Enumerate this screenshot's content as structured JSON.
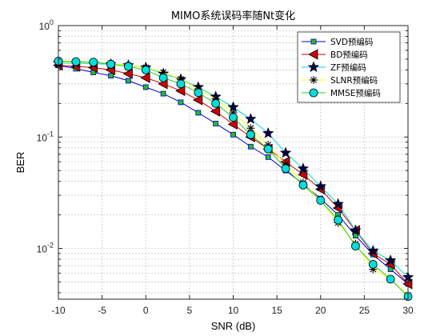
{
  "chart_data": {
    "type": "line",
    "title": "MIMO系统误码率随Nt变化",
    "xlabel": "SNR (dB)",
    "ylabel": "BER",
    "xlim": [
      -10,
      30
    ],
    "ylim": [
      0.0035,
      1
    ],
    "yscale": "log",
    "grid": true,
    "legend_position": "top-right",
    "x_ticks": [
      -10,
      -5,
      0,
      5,
      10,
      15,
      20,
      25,
      30
    ],
    "y_ticks": [
      {
        "value": 0.01,
        "base": "10",
        "exp": "-2"
      },
      {
        "value": 0.1,
        "base": "10",
        "exp": "-1"
      },
      {
        "value": 1,
        "base": "10",
        "exp": "0"
      }
    ],
    "x": [
      -10,
      -8,
      -6,
      -4,
      -2,
      0,
      2,
      4,
      6,
      8,
      10,
      12,
      14,
      16,
      18,
      20,
      22,
      24,
      26,
      28,
      30
    ],
    "series": [
      {
        "name": "SVD预编码",
        "color": "#0000cc",
        "marker": "square",
        "marker_fill": "#22bb22",
        "values": [
          0.44,
          0.41,
          0.38,
          0.355,
          0.32,
          0.28,
          0.245,
          0.205,
          0.165,
          0.132,
          0.105,
          0.082,
          0.066,
          0.05,
          0.038,
          0.028,
          0.02,
          0.013,
          0.0088,
          0.0065,
          0.0048
        ]
      },
      {
        "name": "BD预编码",
        "color": "#cc0000",
        "marker": "triangle-left",
        "marker_fill": "#cc0000",
        "values": [
          0.44,
          0.43,
          0.42,
          0.4,
          0.37,
          0.34,
          0.3,
          0.26,
          0.215,
          0.17,
          0.13,
          0.1,
          0.078,
          0.06,
          0.046,
          0.034,
          0.023,
          0.0145,
          0.009,
          0.0072,
          0.0048
        ]
      },
      {
        "name": "ZF预编码",
        "color": "#00d8d8",
        "marker": "star",
        "marker_fill": "#000033",
        "values": [
          0.46,
          0.46,
          0.455,
          0.45,
          0.44,
          0.42,
          0.37,
          0.33,
          0.28,
          0.23,
          0.185,
          0.145,
          0.108,
          0.072,
          0.052,
          0.036,
          0.025,
          0.0145,
          0.0095,
          0.0078,
          0.0055
        ]
      },
      {
        "name": "SLNR预编码",
        "color": "#ffff00",
        "marker": "asterisk",
        "marker_fill": "#000000",
        "values": [
          0.47,
          0.47,
          0.465,
          0.455,
          0.44,
          0.42,
          0.38,
          0.33,
          0.27,
          0.22,
          0.165,
          0.12,
          0.085,
          0.057,
          0.039,
          0.027,
          0.017,
          0.011,
          0.0065,
          0.0053,
          0.0038
        ]
      },
      {
        "name": "MMSE预编码",
        "color": "#22cc22",
        "marker": "circle",
        "marker_fill": "#00dddd",
        "values": [
          0.48,
          0.475,
          0.47,
          0.45,
          0.43,
          0.4,
          0.34,
          0.3,
          0.25,
          0.2,
          0.15,
          0.105,
          0.078,
          0.052,
          0.037,
          0.027,
          0.018,
          0.0105,
          0.0072,
          0.0053,
          0.0037
        ]
      }
    ]
  }
}
